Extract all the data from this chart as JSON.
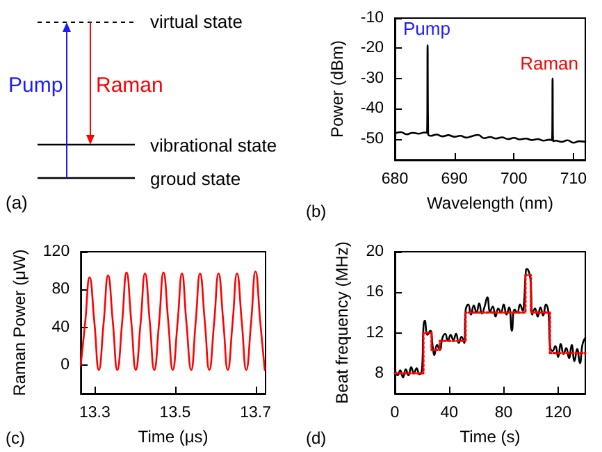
{
  "chart_data": [
    {
      "type": "other",
      "annotations": [
        "virtual state",
        "vibrational state",
        "groud state",
        "Pump",
        "Raman",
        "(a)"
      ]
    },
    {
      "type": "line",
      "xlabel": "Wavelength (nm)",
      "ylabel": "Power (dBm)",
      "xlim": [
        680,
        712
      ],
      "xticks": [
        680,
        690,
        700,
        710
      ],
      "ylim": [
        -57,
        -10
      ],
      "yticks": [
        -50,
        -40,
        -30,
        -20,
        -10
      ],
      "grid": false,
      "marker": "none",
      "series": [
        {
          "color": "#000000",
          "x": [
            680,
            681,
            682,
            683,
            684,
            685,
            685.4,
            685.5,
            685.6,
            686,
            687,
            688,
            689,
            690,
            691,
            692,
            693,
            694,
            695,
            696,
            697,
            698,
            699,
            700,
            701,
            702,
            703,
            704,
            705,
            706,
            706.4,
            706.5,
            706.6,
            707,
            708,
            709,
            710,
            711,
            712
          ],
          "values": [
            -48.2,
            -47.8,
            -48.5,
            -48.0,
            -48.3,
            -47.9,
            -48.0,
            -19,
            -48.5,
            -49.0,
            -48.6,
            -49.2,
            -48.8,
            -49.3,
            -49.0,
            -49.6,
            -49.1,
            -48.7,
            -49.8,
            -49.4,
            -49.9,
            -49.5,
            -50.1,
            -49.7,
            -50.2,
            -49.9,
            -50.4,
            -50.1,
            -50.6,
            -50.3,
            -50.5,
            -30,
            -50.8,
            -50.6,
            -51.0,
            -50.5,
            -51.3,
            -50.8,
            -51.0
          ]
        }
      ],
      "annotations": [
        "Pump",
        "Raman",
        "(b)"
      ]
    },
    {
      "type": "line",
      "xlabel": "Time (μs)",
      "ylabel": "Raman Power (μW)",
      "xlim": [
        13.265,
        13.725
      ],
      "xticks": [
        13.3,
        13.5,
        13.7
      ],
      "ylim": [
        -30,
        120
      ],
      "yticks": [
        0,
        40,
        80,
        120
      ],
      "grid": false,
      "marker": "none",
      "series": [
        {
          "color": "#ff0000",
          "x": [
            13.265,
            13.276,
            13.287,
            13.299,
            13.31,
            13.322,
            13.333,
            13.345,
            13.356,
            13.368,
            13.379,
            13.391,
            13.402,
            13.414,
            13.425,
            13.437,
            13.448,
            13.46,
            13.471,
            13.483,
            13.494,
            13.506,
            13.517,
            13.528,
            13.54,
            13.551,
            13.562,
            13.574,
            13.585,
            13.597,
            13.608,
            13.62,
            13.631,
            13.643,
            13.654,
            13.666,
            13.677,
            13.689,
            13.7,
            13.712,
            13.723
          ],
          "values": [
            0,
            45,
            93,
            45,
            -5,
            45,
            95,
            45,
            -5,
            45,
            98,
            45,
            -5,
            45,
            97,
            45,
            -5,
            45,
            98,
            45,
            -5,
            45,
            97,
            45,
            -5,
            45,
            97,
            45,
            -5,
            45,
            97,
            45,
            -5,
            45,
            97,
            45,
            -5,
            45,
            99,
            45,
            -5
          ]
        }
      ],
      "annotations": [
        "(c)"
      ]
    },
    {
      "type": "line",
      "xlabel": "Time (s)",
      "ylabel": "Beat frequency (MHz)",
      "xlim": [
        0,
        140
      ],
      "xticks": [
        0,
        40,
        80,
        120
      ],
      "ylim": [
        6,
        20
      ],
      "yticks": [
        8,
        12,
        16,
        20
      ],
      "grid": false,
      "marker": "none",
      "series": [
        {
          "color": "#000000",
          "x": [
            0,
            2,
            4,
            6,
            8,
            10,
            12,
            14,
            16,
            18,
            20,
            21,
            22,
            24,
            26,
            28,
            29,
            31,
            33,
            35,
            37,
            39,
            41,
            43,
            45,
            47,
            49,
            51,
            52,
            54,
            56,
            58,
            60,
            62,
            64,
            66,
            68,
            70,
            72,
            74,
            76,
            78,
            80,
            82,
            84,
            86,
            88,
            90,
            92,
            94,
            95,
            96,
            97,
            99,
            100,
            101,
            103,
            105,
            107,
            109,
            111,
            113,
            114,
            116,
            118,
            120,
            122,
            124,
            126,
            128,
            130,
            132,
            134,
            136,
            138,
            140
          ],
          "values": [
            8.5,
            7.8,
            8.3,
            7.6,
            8.4,
            7.8,
            8.6,
            8.0,
            8.5,
            7.9,
            8.4,
            12.5,
            13.2,
            11.8,
            12.2,
            10.5,
            9.8,
            10.8,
            10.3,
            11.5,
            11.9,
            11.2,
            11.8,
            11.3,
            11.9,
            11.0,
            11.6,
            11.0,
            14.2,
            14.8,
            13.8,
            14.7,
            14.0,
            14.9,
            13.9,
            14.6,
            15.5,
            14.1,
            14.6,
            13.6,
            14.4,
            14.0,
            14.8,
            13.8,
            14.5,
            12.2,
            14.3,
            14.0,
            14.8,
            14.2,
            15.0,
            17.5,
            18.3,
            17.8,
            16.5,
            13.8,
            14.4,
            13.6,
            14.5,
            13.7,
            14.8,
            13.9,
            10.8,
            10.2,
            10.7,
            9.6,
            10.9,
            9.9,
            10.5,
            9.5,
            10.8,
            9.2,
            10.4,
            9.0,
            10.9,
            11.5
          ]
        },
        {
          "type": "step",
          "color": "#ff0000",
          "line_style": "dotted",
          "x": [
            0,
            21,
            27,
            33,
            52,
            96,
            100,
            114,
            140
          ],
          "values": [
            8,
            12,
            10.3,
            11.2,
            14,
            17.7,
            14,
            10,
            10
          ]
        }
      ],
      "annotations": [
        "(d)"
      ]
    }
  ]
}
